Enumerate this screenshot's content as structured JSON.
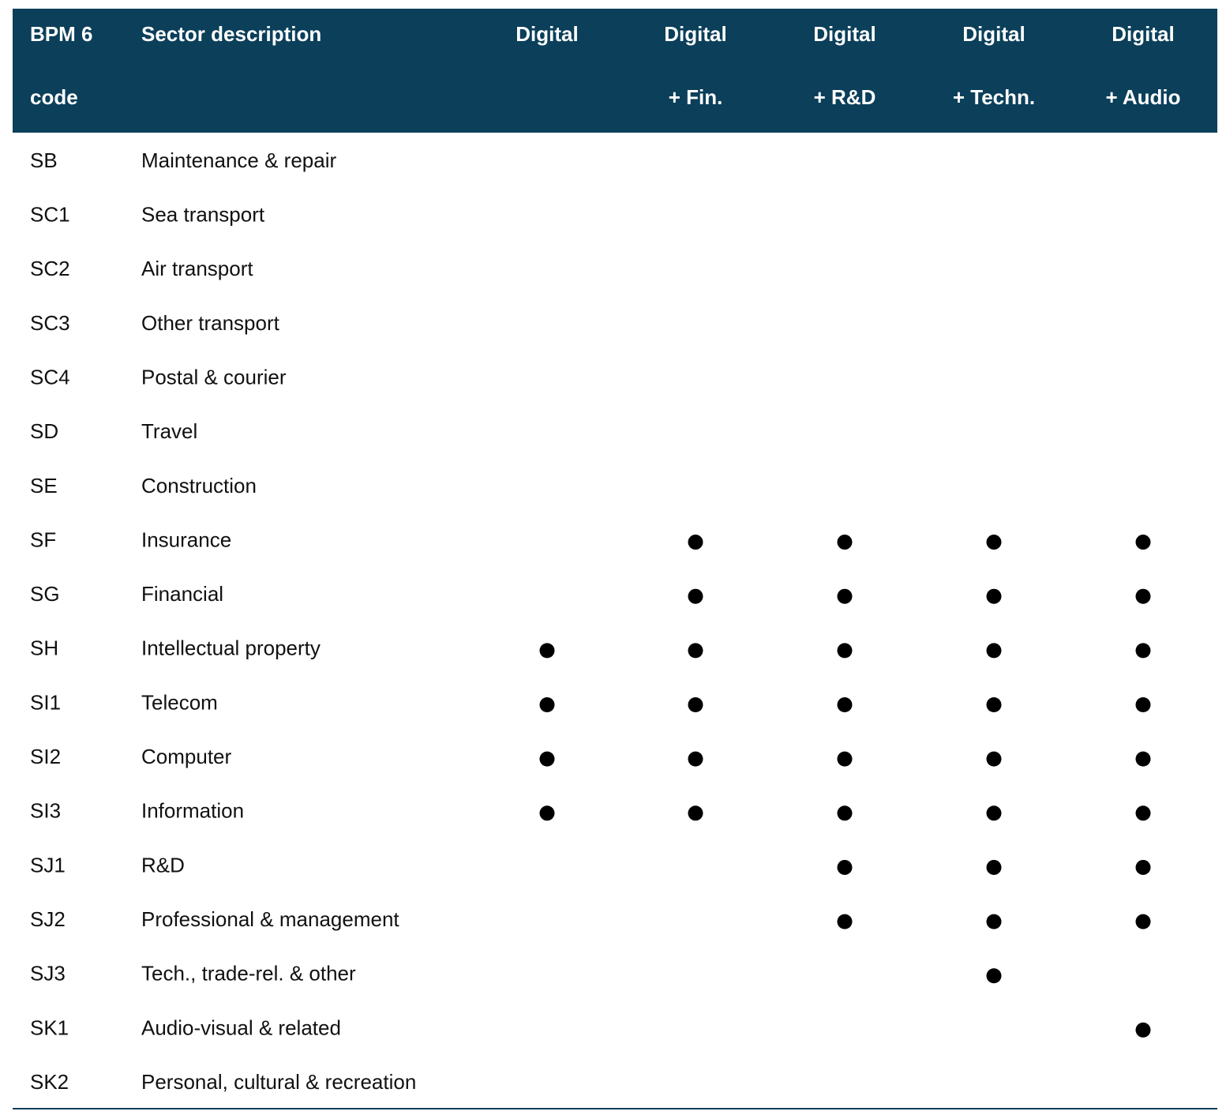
{
  "table": {
    "header": [
      [
        "BPM 6",
        "code"
      ],
      [
        "Sector description"
      ],
      [
        "Digital"
      ],
      [
        "Digital",
        "+ Fin."
      ],
      [
        "Digital",
        "+ R&D"
      ],
      [
        "Digital",
        "+ Techn."
      ],
      [
        "Digital",
        "+ Audio"
      ]
    ],
    "rows": [
      {
        "code": "SB",
        "description": "Maintenance & repair",
        "included": [
          false,
          false,
          false,
          false,
          false
        ]
      },
      {
        "code": "SC1",
        "description": "Sea transport",
        "included": [
          false,
          false,
          false,
          false,
          false
        ]
      },
      {
        "code": "SC2",
        "description": "Air transport",
        "included": [
          false,
          false,
          false,
          false,
          false
        ]
      },
      {
        "code": "SC3",
        "description": "Other transport",
        "included": [
          false,
          false,
          false,
          false,
          false
        ]
      },
      {
        "code": "SC4",
        "description": "Postal & courier",
        "included": [
          false,
          false,
          false,
          false,
          false
        ]
      },
      {
        "code": "SD",
        "description": "Travel",
        "included": [
          false,
          false,
          false,
          false,
          false
        ]
      },
      {
        "code": "SE",
        "description": "Construction",
        "included": [
          false,
          false,
          false,
          false,
          false
        ]
      },
      {
        "code": "SF",
        "description": "Insurance",
        "included": [
          false,
          true,
          true,
          true,
          true
        ]
      },
      {
        "code": "SG",
        "description": "Financial",
        "included": [
          false,
          true,
          true,
          true,
          true
        ]
      },
      {
        "code": "SH",
        "description": "Intellectual property",
        "included": [
          true,
          true,
          true,
          true,
          true
        ]
      },
      {
        "code": "SI1",
        "description": "Telecom",
        "included": [
          true,
          true,
          true,
          true,
          true
        ]
      },
      {
        "code": "SI2",
        "description": "Computer",
        "included": [
          true,
          true,
          true,
          true,
          true
        ]
      },
      {
        "code": "SI3",
        "description": "Information",
        "included": [
          true,
          true,
          true,
          true,
          true
        ]
      },
      {
        "code": "SJ1",
        "description": "R&D",
        "included": [
          false,
          false,
          true,
          true,
          true
        ]
      },
      {
        "code": "SJ2",
        "description": "Professional & management",
        "included": [
          false,
          false,
          true,
          true,
          true
        ]
      },
      {
        "code": "SJ3",
        "description": "Tech., trade-rel. & other",
        "included": [
          false,
          false,
          false,
          true,
          false
        ]
      },
      {
        "code": "SK1",
        "description": "Audio-visual & related",
        "included": [
          false,
          false,
          false,
          false,
          true
        ]
      },
      {
        "code": "SK2",
        "description": "Personal, cultural & recreation",
        "included": [
          false,
          false,
          false,
          false,
          false
        ]
      }
    ]
  }
}
